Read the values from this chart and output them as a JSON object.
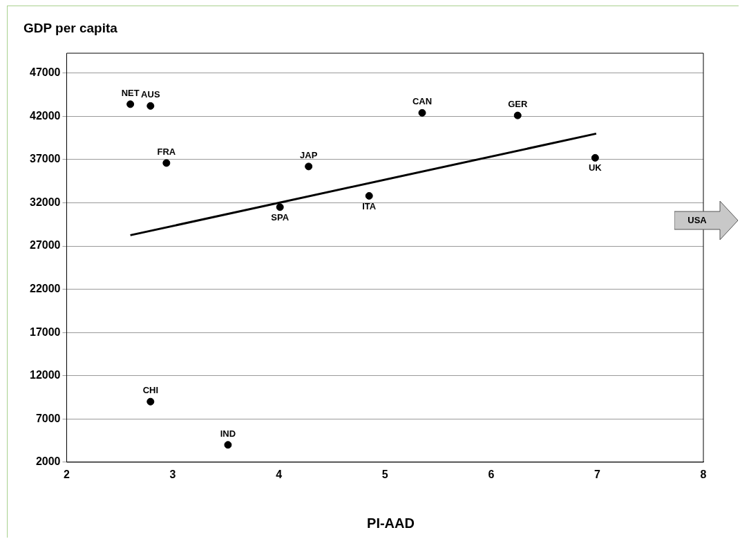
{
  "chart_data": {
    "type": "scatter",
    "title": "GDP per capita",
    "xlabel": "PI-AAD",
    "xlim": [
      2,
      8
    ],
    "xticks": [
      2,
      3,
      4,
      5,
      6,
      7,
      8
    ],
    "ylim": [
      2000,
      49300
    ],
    "yticks": [
      2000,
      7000,
      12000,
      17000,
      22000,
      27000,
      32000,
      37000,
      42000,
      47000
    ],
    "grid": "y",
    "legend": false,
    "series": [
      {
        "color": "#000000",
        "marker": "circle",
        "x": [
          2.6,
          2.79,
          2.94,
          4.28,
          4.01,
          4.85,
          5.35,
          6.25,
          6.98,
          2.79,
          3.52
        ],
        "values": [
          43400,
          43200,
          36600,
          36200,
          31500,
          32800,
          42400,
          42100,
          37200,
          9000,
          4000
        ]
      },
      {
        "type": "line",
        "marker": "none",
        "color": "#000000",
        "x": [
          2.6,
          6.99
        ],
        "values": [
          28250,
          40000
        ]
      }
    ],
    "annotations": [
      {
        "text": "NET",
        "x": 2.6,
        "y": 43400
      },
      {
        "text": "AUS",
        "x": 2.79,
        "y": 43200
      },
      {
        "text": "FRA",
        "x": 2.94,
        "y": 36600
      },
      {
        "text": "JAP",
        "x": 4.28,
        "y": 36200
      },
      {
        "text": "SPA",
        "x": 4.01,
        "y": 31500
      },
      {
        "text": "ITA",
        "x": 4.85,
        "y": 32800
      },
      {
        "text": "CAN",
        "x": 5.35,
        "y": 42400
      },
      {
        "text": "GER",
        "x": 6.25,
        "y": 42100
      },
      {
        "text": "UK",
        "x": 6.98,
        "y": 37200
      },
      {
        "text": "CHI",
        "x": 2.79,
        "y": 9000
      },
      {
        "text": "IND",
        "x": 3.52,
        "y": 4000
      },
      "USA"
    ]
  }
}
